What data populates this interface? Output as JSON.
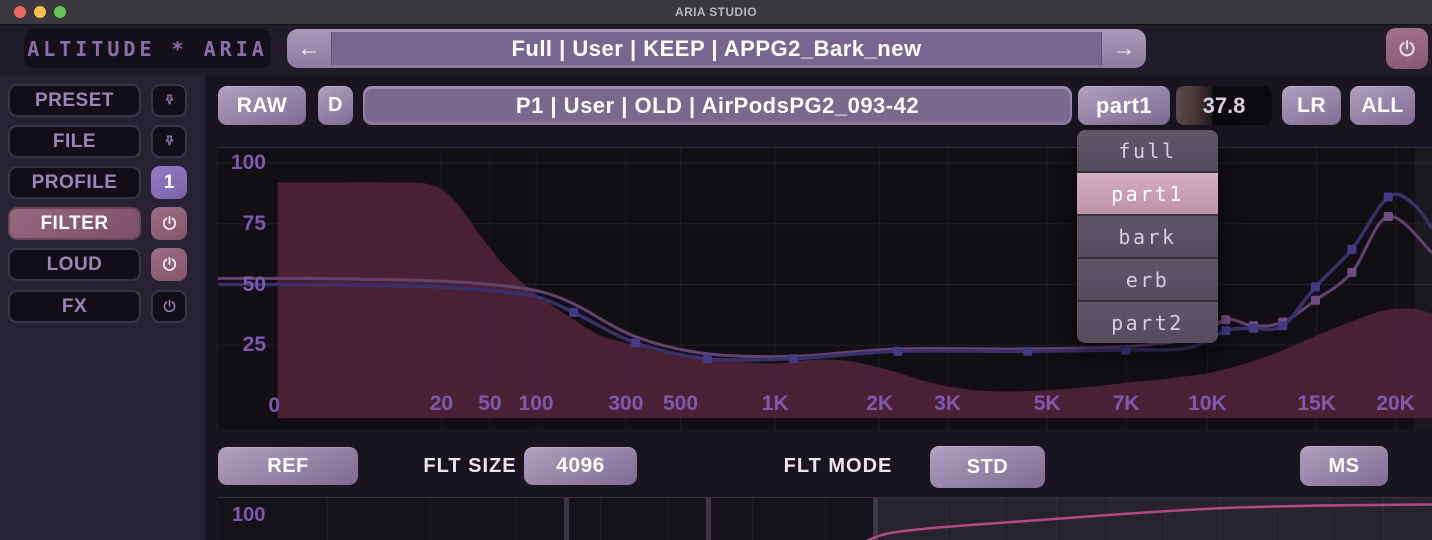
{
  "window": {
    "title": "ARIA STUDIO"
  },
  "header": {
    "logo": "ALTITUDE * ARIA",
    "nav": {
      "back_glyph": "←",
      "forward_glyph": "→",
      "preset_name": "Full | User | KEEP | APPG2_Bark_new"
    }
  },
  "sidebar": {
    "items": [
      {
        "label": "PRESET",
        "aux": "pin"
      },
      {
        "label": "FILE",
        "aux": "pin"
      },
      {
        "label": "PROFILE",
        "aux": "slot",
        "aux_label": "1"
      },
      {
        "label": "FILTER",
        "aux": "power-on",
        "active": true
      },
      {
        "label": "LOUD",
        "aux": "power-on"
      },
      {
        "label": "FX",
        "aux": "power-off"
      }
    ]
  },
  "toolbar": {
    "raw": "RAW",
    "d": "D",
    "profile_name": "P1 | User | OLD | AirPodsPG2_093-42",
    "band": "part1",
    "value": "37.8",
    "meter_pct": 37,
    "lr": "LR",
    "all": "ALL"
  },
  "dropdown": {
    "selected_index": 1,
    "items": [
      {
        "label": "full"
      },
      {
        "label": "part1"
      },
      {
        "label": "bark"
      },
      {
        "label": "erb"
      },
      {
        "label": "part2"
      }
    ]
  },
  "footer": {
    "ref": "REF",
    "flt_size_label": "FLT SIZE",
    "flt_size_value": "4096",
    "flt_mode_label": "FLT MODE",
    "flt_mode_value": "STD",
    "ms": "MS"
  },
  "analyzer": {
    "type": "area+line",
    "ylim": [
      0,
      100
    ],
    "grid_colors": {
      "v": "#1f1a26",
      "h": "#231d2b"
    },
    "yticks": [
      {
        "label": "100",
        "v": 100,
        "dx": 0
      },
      {
        "label": "75",
        "v": 75,
        "dx": 0
      },
      {
        "label": "50",
        "v": 50,
        "dx": 0
      },
      {
        "label": "25",
        "v": 25,
        "dx": 0
      },
      {
        "label": "0",
        "v": 0,
        "dx": 14
      }
    ],
    "xticks": [
      {
        "label": "20",
        "f": 0.184
      },
      {
        "label": "50",
        "f": 0.224
      },
      {
        "label": "100",
        "f": 0.262
      },
      {
        "label": "300",
        "f": 0.336
      },
      {
        "label": "500",
        "f": 0.381
      },
      {
        "label": "1K",
        "f": 0.459
      },
      {
        "label": "2K",
        "f": 0.545
      },
      {
        "label": "3K",
        "f": 0.601
      },
      {
        "label": "5K",
        "f": 0.683
      },
      {
        "label": "7K",
        "f": 0.748
      },
      {
        "label": "10K",
        "f": 0.815
      },
      {
        "label": "15K",
        "f": 0.905
      },
      {
        "label": "20K",
        "f": 0.97
      }
    ],
    "series": [
      {
        "name": "raw-response-area",
        "type": "area",
        "color": "#4c2137",
        "opacity": 0.97,
        "points": [
          [
            0.049,
            92
          ],
          [
            0.1,
            92
          ],
          [
            0.14,
            92
          ],
          [
            0.172,
            91.5
          ],
          [
            0.19,
            87
          ],
          [
            0.205,
            78
          ],
          [
            0.218,
            69
          ],
          [
            0.232,
            60
          ],
          [
            0.25,
            51
          ],
          [
            0.268,
            44
          ],
          [
            0.29,
            36.5
          ],
          [
            0.315,
            29
          ],
          [
            0.336,
            26
          ],
          [
            0.36,
            23.5
          ],
          [
            0.386,
            21
          ],
          [
            0.42,
            18.5
          ],
          [
            0.459,
            17.5
          ],
          [
            0.49,
            19
          ],
          [
            0.52,
            18.5
          ],
          [
            0.551,
            15
          ],
          [
            0.58,
            10.5
          ],
          [
            0.608,
            7.5
          ],
          [
            0.64,
            6
          ],
          [
            0.683,
            6.5
          ],
          [
            0.72,
            8
          ],
          [
            0.748,
            9.5
          ],
          [
            0.785,
            11.5
          ],
          [
            0.815,
            13.5
          ],
          [
            0.85,
            18
          ],
          [
            0.882,
            24
          ],
          [
            0.905,
            29
          ],
          [
            0.935,
            35
          ],
          [
            0.962,
            39.5
          ],
          [
            0.985,
            40
          ],
          [
            1.0,
            38
          ]
        ]
      },
      {
        "name": "target-curve",
        "type": "line",
        "color": "#61436f",
        "marker_color": "#6f4d82",
        "width": 3,
        "points": [
          [
            0,
            52.5,
            0
          ],
          [
            0.06,
            52.5,
            0
          ],
          [
            0.12,
            52.2,
            0
          ],
          [
            0.18,
            51.5,
            0
          ],
          [
            0.224,
            50,
            0
          ],
          [
            0.262,
            47.5,
            0
          ],
          [
            0.293,
            42,
            0
          ],
          [
            0.344,
            28.5,
            0
          ],
          [
            0.403,
            21.5,
            0
          ],
          [
            0.474,
            20.5,
            0
          ],
          [
            0.56,
            23.5,
            0
          ],
          [
            0.667,
            23.5,
            0
          ],
          [
            0.748,
            24.5,
            0
          ],
          [
            0.805,
            28,
            0
          ],
          [
            0.83,
            35.5,
            1
          ],
          [
            0.853,
            33,
            1
          ],
          [
            0.877,
            34.5,
            1
          ],
          [
            0.904,
            43.5,
            1
          ],
          [
            0.934,
            55,
            1
          ],
          [
            0.964,
            78,
            1
          ],
          [
            1.0,
            63,
            0
          ]
        ]
      },
      {
        "name": "filter-curve",
        "type": "line",
        "color": "#37306b",
        "marker_color": "#433a85",
        "width": 3.5,
        "points": [
          [
            0,
            50,
            0
          ],
          [
            0.06,
            50,
            0
          ],
          [
            0.12,
            49.7,
            0
          ],
          [
            0.18,
            49,
            0
          ],
          [
            0.224,
            47.5,
            0
          ],
          [
            0.262,
            45,
            0
          ],
          [
            0.293,
            38.5,
            1
          ],
          [
            0.344,
            26,
            1
          ],
          [
            0.403,
            19.5,
            1
          ],
          [
            0.474,
            19.5,
            1
          ],
          [
            0.56,
            22.5,
            1
          ],
          [
            0.667,
            22.5,
            1
          ],
          [
            0.748,
            23,
            1
          ],
          [
            0.8,
            24,
            0
          ],
          [
            0.83,
            31,
            1
          ],
          [
            0.853,
            32,
            1
          ],
          [
            0.877,
            33,
            1
          ],
          [
            0.904,
            49,
            1
          ],
          [
            0.934,
            64.5,
            1
          ],
          [
            0.964,
            86,
            1
          ],
          [
            0.985,
            83,
            0
          ],
          [
            1.0,
            73,
            0
          ]
        ]
      }
    ]
  },
  "bottom_chart": {
    "ylabel": "100",
    "dividers_f": [
      0.287,
      0.404,
      0.541
    ],
    "highlight_from_f": 0.541,
    "grid_f": [
      0.09,
      0.175,
      0.245,
      0.315,
      0.37,
      0.44,
      0.5,
      0.6,
      0.645,
      0.69,
      0.735,
      0.78,
      0.825,
      0.87,
      0.915,
      0.96
    ],
    "curve": {
      "color": "#b04a82",
      "width": 2.5,
      "points": [
        [
          0.532,
          44
        ],
        [
          0.55,
          36
        ],
        [
          0.58,
          31
        ],
        [
          0.62,
          27
        ],
        [
          0.66,
          23.5
        ],
        [
          0.7,
          20
        ],
        [
          0.745,
          16
        ],
        [
          0.79,
          12.5
        ],
        [
          0.83,
          10
        ],
        [
          0.87,
          8.5
        ],
        [
          0.91,
          7.5
        ],
        [
          0.95,
          7
        ],
        [
          1.0,
          6.5
        ]
      ]
    }
  }
}
